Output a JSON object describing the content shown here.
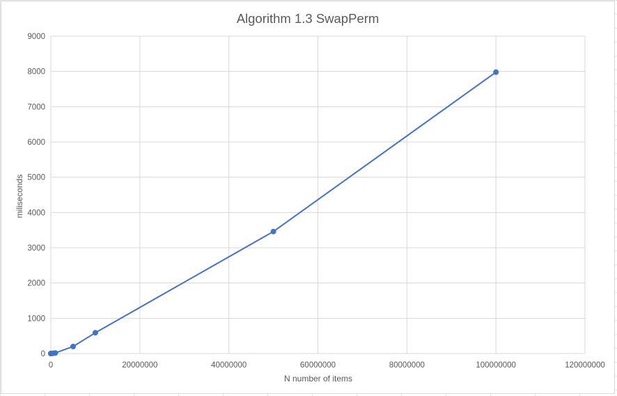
{
  "chart_data": {
    "type": "line",
    "title": "Algorithm 1.3 SwapPerm",
    "xlabel": "N number of items",
    "ylabel": "miliseconds",
    "xlim": [
      0,
      120000000
    ],
    "ylim": [
      0,
      9000
    ],
    "x_ticks": [
      0,
      20000000,
      40000000,
      60000000,
      80000000,
      100000000,
      120000000
    ],
    "y_ticks": [
      0,
      1000,
      2000,
      3000,
      4000,
      5000,
      6000,
      7000,
      8000,
      9000
    ],
    "x_tick_labels": [
      "0",
      "20000000",
      "40000000",
      "60000000",
      "80000000",
      "100000000",
      "120000000"
    ],
    "y_tick_labels": [
      "0",
      "1000",
      "2000",
      "3000",
      "4000",
      "5000",
      "6000",
      "7000",
      "8000",
      "9000"
    ],
    "grid": true,
    "marker": "circle",
    "series": [
      {
        "color": "#4472c4",
        "x": [
          100,
          1000,
          10000,
          100000,
          500000,
          1000000,
          5000000,
          10000000,
          50000000,
          100000000
        ],
        "y": [
          0,
          0,
          1,
          2,
          8,
          16,
          200,
          590,
          3460,
          7980
        ]
      }
    ]
  }
}
